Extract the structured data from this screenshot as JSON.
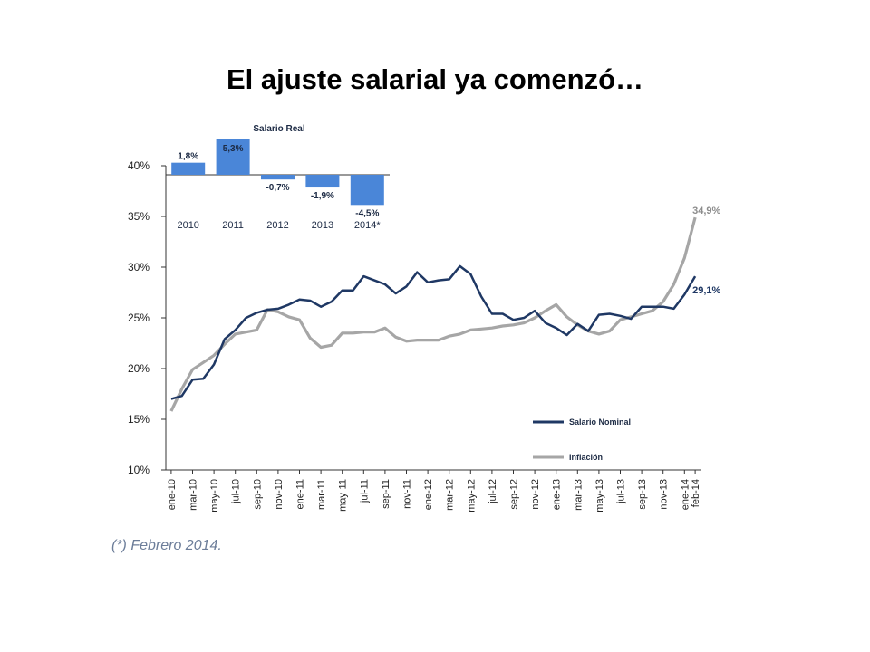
{
  "slide": {
    "title": "El ajuste salarial ya comenzó…",
    "footnote": "(*) Febrero 2014."
  },
  "colors": {
    "nominal": "#1f3864",
    "inflacion": "#a6a6a6",
    "bars": "#4a86d8",
    "axis": "#333333"
  },
  "chart_data": [
    {
      "type": "line",
      "ylim": [
        10,
        40
      ],
      "yticks": [
        10,
        15,
        20,
        25,
        30,
        35,
        40
      ],
      "ytick_labels": [
        "10%",
        "15%",
        "20%",
        "25%",
        "30%",
        "35%",
        "40%"
      ],
      "x_labels": [
        "ene-10",
        "mar-10",
        "may-10",
        "jul-10",
        "sep-10",
        "nov-10",
        "ene-11",
        "mar-11",
        "may-11",
        "jul-11",
        "sep-11",
        "nov-11",
        "ene-12",
        "mar-12",
        "may-12",
        "jul-12",
        "sep-12",
        "nov-12",
        "ene-13",
        "mar-13",
        "may-13",
        "jul-13",
        "sep-13",
        "nov-13",
        "ene-14",
        "feb-14"
      ],
      "x_months": [
        "ene-10",
        "feb-10",
        "mar-10",
        "abr-10",
        "may-10",
        "jun-10",
        "jul-10",
        "ago-10",
        "sep-10",
        "oct-10",
        "nov-10",
        "dic-10",
        "ene-11",
        "feb-11",
        "mar-11",
        "abr-11",
        "may-11",
        "jun-11",
        "jul-11",
        "ago-11",
        "sep-11",
        "oct-11",
        "nov-11",
        "dic-11",
        "ene-12",
        "feb-12",
        "mar-12",
        "abr-12",
        "may-12",
        "jun-12",
        "jul-12",
        "ago-12",
        "sep-12",
        "oct-12",
        "nov-12",
        "dic-12",
        "ene-13",
        "feb-13",
        "mar-13",
        "abr-13",
        "may-13",
        "jun-13",
        "jul-13",
        "ago-13",
        "sep-13",
        "oct-13",
        "nov-13",
        "dic-13",
        "ene-14",
        "feb-14"
      ],
      "series": [
        {
          "name": "Salario Nominal",
          "color": "#1f3864",
          "values": [
            17.0,
            17.3,
            18.9,
            19.0,
            20.4,
            22.9,
            23.8,
            25.0,
            25.5,
            25.8,
            25.9,
            26.3,
            26.8,
            26.7,
            26.1,
            26.6,
            27.7,
            27.7,
            29.1,
            28.7,
            28.3,
            27.4,
            28.1,
            29.5,
            28.5,
            28.7,
            28.8,
            30.1,
            29.3,
            27.1,
            25.4,
            25.4,
            24.8,
            25.0,
            25.7,
            24.5,
            24.0,
            23.3,
            24.4,
            23.7,
            25.3,
            25.4,
            25.2,
            24.9,
            26.1,
            26.1,
            26.1,
            25.9,
            27.3,
            29.1
          ],
          "end_label": "29,1%"
        },
        {
          "name": "Inflación",
          "color": "#a6a6a6",
          "values": [
            15.8,
            18.0,
            19.9,
            20.6,
            21.3,
            22.4,
            23.4,
            23.6,
            23.8,
            25.8,
            25.6,
            25.1,
            24.8,
            23.0,
            22.1,
            22.3,
            23.5,
            23.5,
            23.6,
            23.6,
            24.0,
            23.1,
            22.7,
            22.8,
            22.8,
            22.8,
            23.2,
            23.4,
            23.8,
            23.9,
            24.0,
            24.2,
            24.3,
            24.5,
            25.0,
            25.7,
            26.3,
            25.1,
            24.3,
            23.7,
            23.4,
            23.7,
            24.8,
            25.1,
            25.4,
            25.7,
            26.6,
            28.3,
            30.9,
            34.9
          ],
          "end_label": "34,9%"
        }
      ],
      "legend": {
        "position": "bottom-right",
        "entries": [
          "Salario Nominal",
          "Inflación"
        ]
      },
      "grid": false
    },
    {
      "type": "bar",
      "title": "Salario Real",
      "categories": [
        "2010",
        "2011",
        "2012",
        "2013",
        "2014*"
      ],
      "values": [
        1.8,
        5.3,
        -0.7,
        -1.9,
        -4.5
      ],
      "value_labels": [
        "1,8%",
        "5,3%",
        "-0,7%",
        "-1,9%",
        "-4,5%"
      ],
      "color": "#4a86d8",
      "grid": false
    }
  ],
  "legend_labels": [
    "Salario Nominal",
    "Inflación"
  ]
}
